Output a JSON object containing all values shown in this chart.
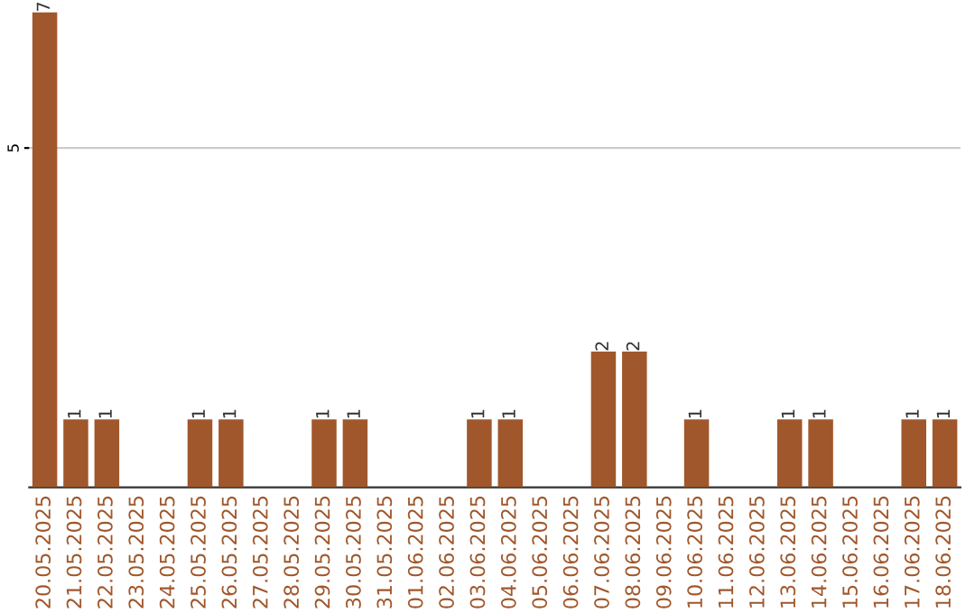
{
  "chart_data": {
    "type": "bar",
    "categories": [
      "20.05.2025",
      "21.05.2025",
      "22.05.2025",
      "23.05.2025",
      "24.05.2025",
      "25.05.2025",
      "26.05.2025",
      "27.05.2025",
      "28.05.2025",
      "29.05.2025",
      "30.05.2025",
      "31.05.2025",
      "01.06.2025",
      "02.06.2025",
      "03.06.2025",
      "04.06.2025",
      "05.06.2025",
      "06.06.2025",
      "07.06.2025",
      "08.06.2025",
      "09.06.2025",
      "10.06.2025",
      "11.06.2025",
      "12.06.2025",
      "13.06.2025",
      "14.06.2025",
      "15.06.2025",
      "16.06.2025",
      "17.06.2025",
      "18.06.2025"
    ],
    "values": [
      7,
      1,
      1,
      0,
      0,
      1,
      1,
      0,
      0,
      1,
      1,
      0,
      0,
      0,
      1,
      1,
      0,
      0,
      2,
      2,
      0,
      1,
      0,
      0,
      1,
      1,
      0,
      0,
      1,
      1
    ],
    "value_labels": [
      "7",
      "1",
      "1",
      null,
      null,
      "1",
      "1",
      null,
      null,
      "1",
      "1",
      null,
      null,
      null,
      "1",
      "1",
      null,
      null,
      "2",
      "2",
      null,
      "1",
      null,
      null,
      "1",
      "1",
      null,
      null,
      "1",
      "1"
    ],
    "color": "#a0572b",
    "ylim": [
      0,
      7
    ],
    "yticks": [
      5
    ],
    "grid": "y"
  }
}
